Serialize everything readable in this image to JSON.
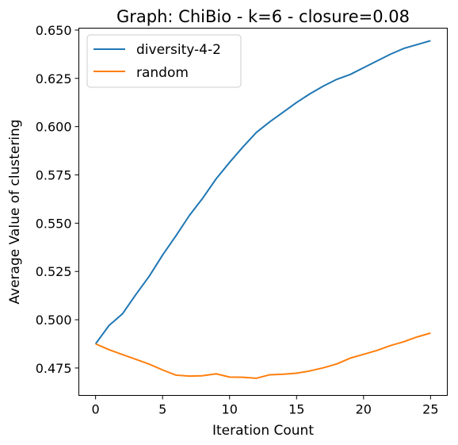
{
  "chart_data": {
    "type": "line",
    "title": "Graph: ChiBio - k=6 - closure=0.08",
    "xlabel": "Iteration Count",
    "ylabel": "Average Value of clustering",
    "xlim": [
      -1.25,
      26.25
    ],
    "ylim": [
      0.4608,
      0.651
    ],
    "xticks": [
      0,
      5,
      10,
      15,
      20,
      25
    ],
    "xtick_labels": [
      "0",
      "5",
      "10",
      "15",
      "20",
      "25"
    ],
    "yticks": [
      0.475,
      0.5,
      0.525,
      0.55,
      0.575,
      0.6,
      0.625,
      0.65
    ],
    "ytick_labels": [
      "0.475",
      "0.500",
      "0.525",
      "0.550",
      "0.575",
      "0.600",
      "0.625",
      "0.650"
    ],
    "grid": false,
    "legend_position": "top-left",
    "x": [
      0,
      1,
      2,
      3,
      4,
      5,
      6,
      7,
      8,
      9,
      10,
      11,
      12,
      13,
      14,
      15,
      16,
      17,
      18,
      19,
      20,
      21,
      22,
      23,
      24,
      25
    ],
    "series": [
      {
        "name": "diversity-4-2",
        "color": "#1f77b4",
        "values": [
          0.4875,
          0.497,
          0.503,
          0.513,
          0.5225,
          0.5335,
          0.5435,
          0.554,
          0.563,
          0.573,
          0.5815,
          0.5895,
          0.597,
          0.6025,
          0.6075,
          0.6125,
          0.617,
          0.621,
          0.6245,
          0.627,
          0.6305,
          0.634,
          0.6375,
          0.6405,
          0.6425,
          0.6445
        ]
      },
      {
        "name": "random",
        "color": "#ff7f0e",
        "values": [
          0.4875,
          0.4845,
          0.482,
          0.4795,
          0.477,
          0.474,
          0.4713,
          0.4708,
          0.471,
          0.472,
          0.4703,
          0.4702,
          0.4697,
          0.4715,
          0.4718,
          0.4723,
          0.4735,
          0.4751,
          0.4771,
          0.4801,
          0.4821,
          0.4841,
          0.4866,
          0.4886,
          0.4911,
          0.4931
        ]
      }
    ]
  }
}
